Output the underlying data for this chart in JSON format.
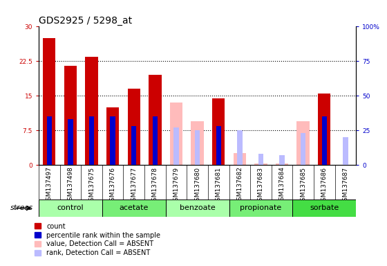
{
  "title": "GDS2925 / 5298_at",
  "samples": [
    "GSM137497",
    "GSM137498",
    "GSM137675",
    "GSM137676",
    "GSM137677",
    "GSM137678",
    "GSM137679",
    "GSM137680",
    "GSM137681",
    "GSM137682",
    "GSM137683",
    "GSM137684",
    "GSM137685",
    "GSM137686",
    "GSM137687"
  ],
  "count_values": [
    27.5,
    21.5,
    23.5,
    12.5,
    16.5,
    19.5,
    0,
    0,
    14.5,
    0,
    0,
    0,
    0,
    15.5,
    0
  ],
  "percentile_values": [
    35,
    33,
    35,
    35,
    28,
    35,
    0,
    0,
    28,
    0,
    0,
    0,
    0,
    35,
    0
  ],
  "absent_count_values": [
    0,
    0,
    0,
    0,
    0,
    0,
    13.5,
    9.5,
    0,
    2.5,
    0.3,
    0.3,
    9.5,
    0,
    0
  ],
  "absent_rank_values": [
    0,
    0,
    0,
    0,
    0,
    0,
    27,
    25,
    0,
    25,
    8,
    7,
    23,
    0,
    20
  ],
  "groups": [
    {
      "name": "control",
      "indices": [
        0,
        1,
        2
      ],
      "color": "#aaffaa"
    },
    {
      "name": "acetate",
      "indices": [
        3,
        4,
        5
      ],
      "color": "#77ee77"
    },
    {
      "name": "benzoate",
      "indices": [
        6,
        7,
        8
      ],
      "color": "#aaffaa"
    },
    {
      "name": "propionate",
      "indices": [
        9,
        10,
        11
      ],
      "color": "#77ee77"
    },
    {
      "name": "sorbate",
      "indices": [
        12,
        13,
        14
      ],
      "color": "#44dd44"
    }
  ],
  "ylim_left": [
    0,
    30
  ],
  "ylim_right": [
    0,
    100
  ],
  "yticks_left": [
    0,
    7.5,
    15,
    22.5,
    30
  ],
  "yticks_right": [
    0,
    25,
    50,
    75,
    100
  ],
  "color_count": "#cc0000",
  "color_percentile": "#0000cc",
  "color_absent_count": "#ffbbbb",
  "color_absent_rank": "#bbbbff",
  "bar_width": 0.6,
  "tick_bg_color": "#dddddd",
  "title_fontsize": 10,
  "legend_fontsize": 7,
  "tick_fontsize": 6.5,
  "group_fontsize": 8
}
